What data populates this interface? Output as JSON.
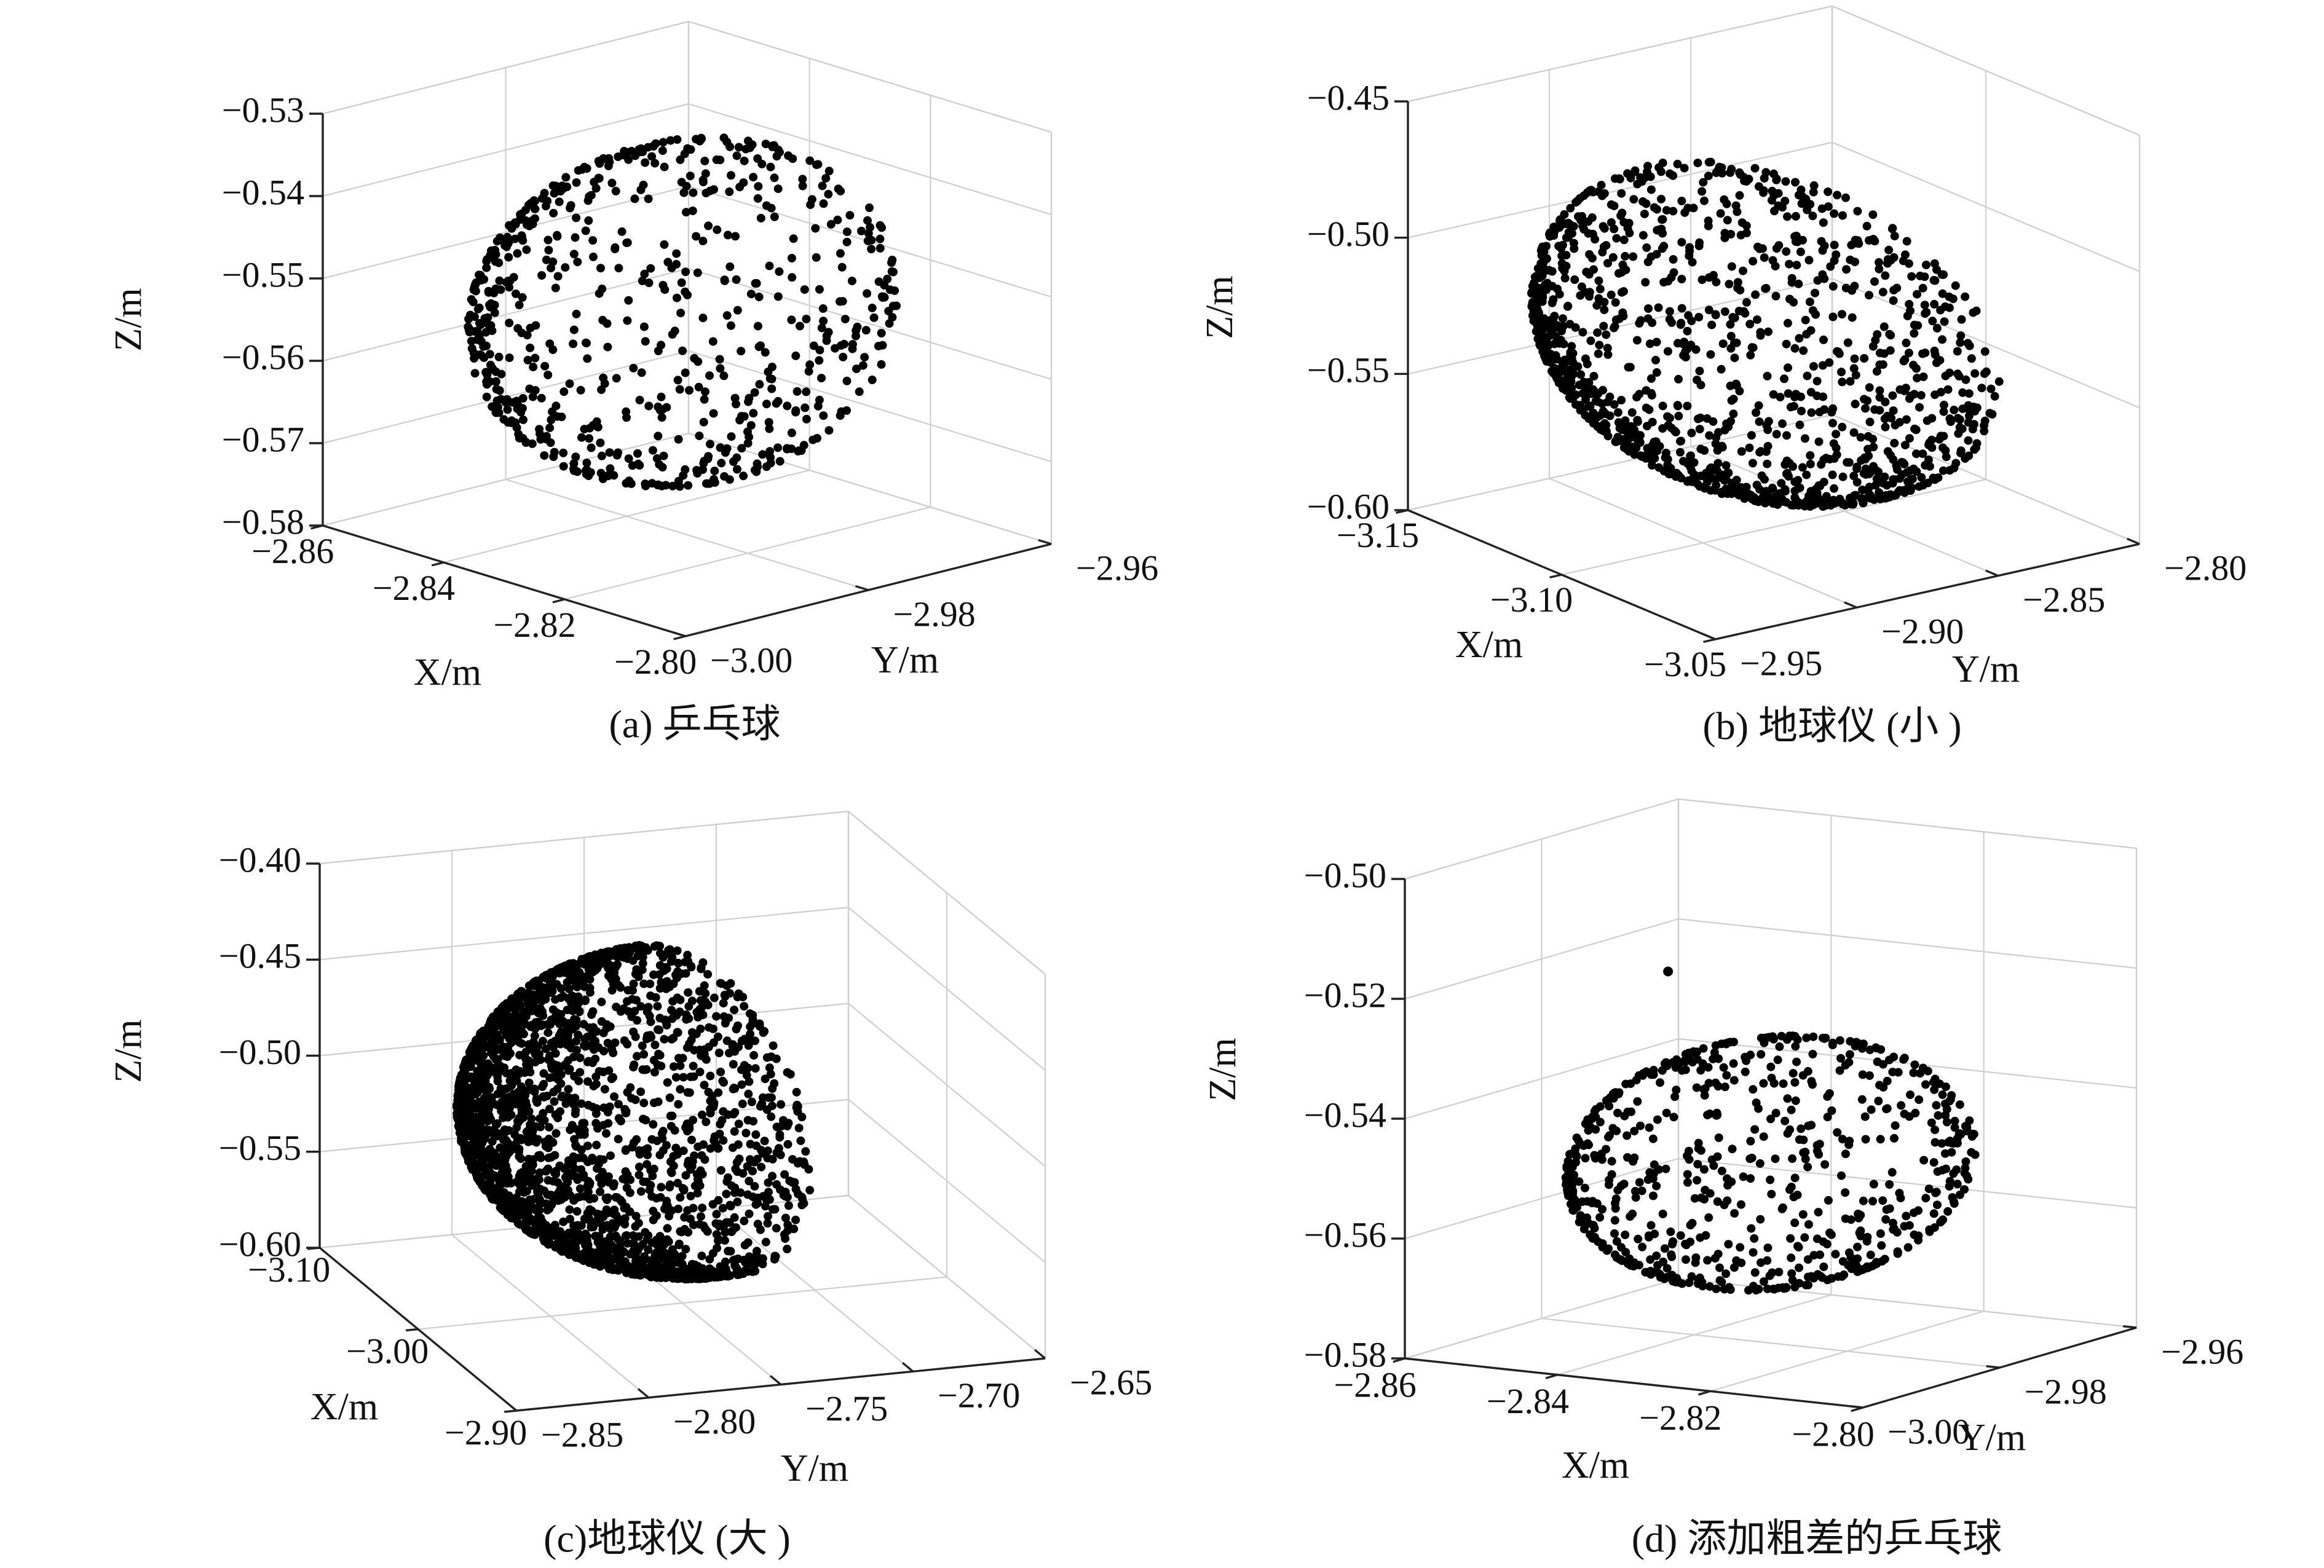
{
  "chart_data": [
    {
      "type": "scatter",
      "projection": "3d",
      "caption": "(a) 乒乓球",
      "xlabel": "X/m",
      "ylabel": "Y/m",
      "zlabel": "Z/m",
      "xlim": [
        -2.86,
        -2.8
      ],
      "ylim": [
        -3.0,
        -2.96
      ],
      "zlim": [
        -0.58,
        -0.53
      ],
      "x_ticks": [
        "−2.86",
        "−2.84",
        "−2.82",
        "−2.80"
      ],
      "y_ticks": [
        "−3.00",
        "−2.98",
        "−2.96"
      ],
      "z_ticks": [
        "−0.53",
        "−0.54",
        "−0.55",
        "−0.56",
        "−0.57",
        "−0.58"
      ],
      "grid": true,
      "shape": {
        "kind": "partial-sphere-cap",
        "center": [
          -2.83,
          -2.98,
          -0.553
        ],
        "radius": 0.02,
        "axis": [
          0.5,
          -0.8,
          0.3
        ],
        "cap_cos": -0.15,
        "point_count": 700
      }
    },
    {
      "type": "scatter",
      "projection": "3d",
      "caption": "(b) 地球仪 (小 )",
      "xlabel": "X/m",
      "ylabel": "Y/m",
      "zlabel": "Z/m",
      "xlim": [
        -3.15,
        -3.05
      ],
      "ylim": [
        -2.95,
        -2.8
      ],
      "zlim": [
        -0.6,
        -0.45
      ],
      "x_ticks": [
        "−3.15",
        "−3.10",
        "−3.05"
      ],
      "y_ticks": [
        "−2.95",
        "−2.90",
        "−2.85",
        "−2.80"
      ],
      "z_ticks": [
        "−0.45",
        "−0.50",
        "−0.55",
        "−0.60"
      ],
      "grid": true,
      "shape": {
        "kind": "partial-sphere-cap",
        "center": [
          -3.1,
          -2.875,
          -0.527
        ],
        "radius": 0.058,
        "axis": [
          0.35,
          -0.9,
          0.0
        ],
        "cap_cos": 0.0,
        "point_count": 1300
      }
    },
    {
      "type": "scatter",
      "projection": "3d",
      "caption": "(c)地球仪 (大 )",
      "xlabel": "X/m",
      "ylabel": "Y/m",
      "zlabel": "Z/m",
      "xlim": [
        -3.1,
        -2.9
      ],
      "ylim": [
        -2.85,
        -2.65
      ],
      "zlim": [
        -0.6,
        -0.4
      ],
      "x_ticks": [
        "−3.10",
        "−3.00",
        "−2.90"
      ],
      "y_ticks": [
        "−2.85",
        "−2.80",
        "−2.75",
        "−2.70",
        "−2.65"
      ],
      "z_ticks": [
        "−0.40",
        "−0.45",
        "−0.50",
        "−0.55",
        "−0.60"
      ],
      "grid": true,
      "shape": {
        "kind": "partial-sphere-cap",
        "center": [
          -3.0,
          -2.75,
          -0.5
        ],
        "radius": 0.08,
        "axis": [
          0.2,
          -0.97,
          0.0
        ],
        "cap_cos": -0.05,
        "point_count": 2300
      }
    },
    {
      "type": "scatter",
      "projection": "3d",
      "caption": "(d) 添加粗差的乒乓球",
      "xlabel": "X/m",
      "ylabel": "Y/m",
      "zlabel": "Z/m",
      "xlim": [
        -2.86,
        -2.8
      ],
      "ylim": [
        -3.0,
        -2.96
      ],
      "zlim": [
        -0.58,
        -0.5
      ],
      "x_ticks": [
        "−2.86",
        "−2.84",
        "−2.82",
        "−2.80"
      ],
      "y_ticks": [
        "−3.00",
        "−2.98",
        "−2.96"
      ],
      "z_ticks": [
        "−0.50",
        "−0.52",
        "−0.54",
        "−0.56",
        "−0.58"
      ],
      "grid": true,
      "shape": {
        "kind": "partial-sphere-cap",
        "center": [
          -2.83,
          -2.98,
          -0.55
        ],
        "radius": 0.02,
        "axis": [
          0.5,
          -0.8,
          0.3
        ],
        "cap_cos": -0.15,
        "point_count": 700
      },
      "outliers": [
        {
          "x": -2.83,
          "y": -2.995,
          "z": -0.513
        },
        {
          "x": -2.852,
          "y": -2.968,
          "z": -0.54
        },
        {
          "x": -2.855,
          "y": -2.96,
          "z": -0.552
        }
      ]
    }
  ]
}
